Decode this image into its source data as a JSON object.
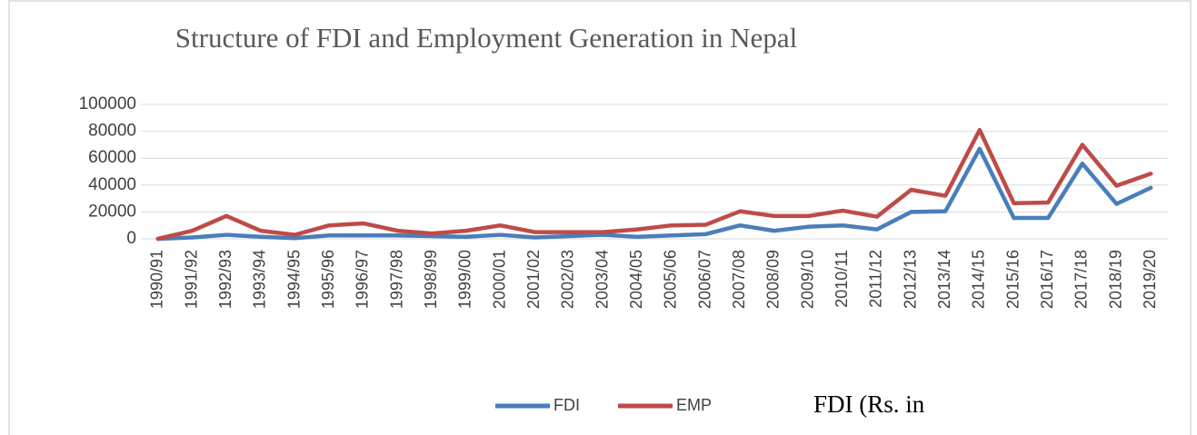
{
  "chart_data": {
    "type": "line",
    "title": "Structure of FDI and Employment Generation in Nepal",
    "annotation": "FDI (Rs. in",
    "categories": [
      "1990/91",
      "1991/92",
      "1992/93",
      "1993/94",
      "1994/95",
      "1995/96",
      "1996/97",
      "1997/98",
      "1998/99",
      "1999/00",
      "2000/01",
      "2001/02",
      "2002/03",
      "2003/04",
      "2004/05",
      "2005/06",
      "2006/07",
      "2007/08",
      "2008/09",
      "2009/10",
      "2010/11",
      "2011/12",
      "2012/13",
      "2013/14",
      "2014/15",
      "2015/16",
      "2016/17",
      "2017/18",
      "2018/19",
      "2019/20"
    ],
    "series": [
      {
        "name": "FDI",
        "color": "#4a7ebb",
        "values": [
          0,
          1000,
          3000,
          1500,
          500,
          2500,
          2500,
          2500,
          2000,
          1500,
          3000,
          1000,
          2000,
          3000,
          1500,
          2500,
          3500,
          10000,
          6000,
          9000,
          10000,
          7000,
          20000,
          20500,
          67000,
          15500,
          15500,
          56000,
          26000,
          38000
        ]
      },
      {
        "name": "EMP",
        "color": "#be4b48",
        "values": [
          0,
          6000,
          17000,
          6000,
          3000,
          10000,
          11500,
          6000,
          4000,
          6000,
          10000,
          5000,
          5000,
          5000,
          7000,
          10000,
          10500,
          20500,
          17000,
          17000,
          21000,
          16500,
          36500,
          32000,
          81000,
          26500,
          27000,
          70000,
          39500,
          48500
        ]
      }
    ],
    "ylim": [
      0,
      100000
    ],
    "yticks": [
      0,
      20000,
      40000,
      60000,
      80000,
      100000
    ],
    "grid": true,
    "legend": "bottom"
  }
}
